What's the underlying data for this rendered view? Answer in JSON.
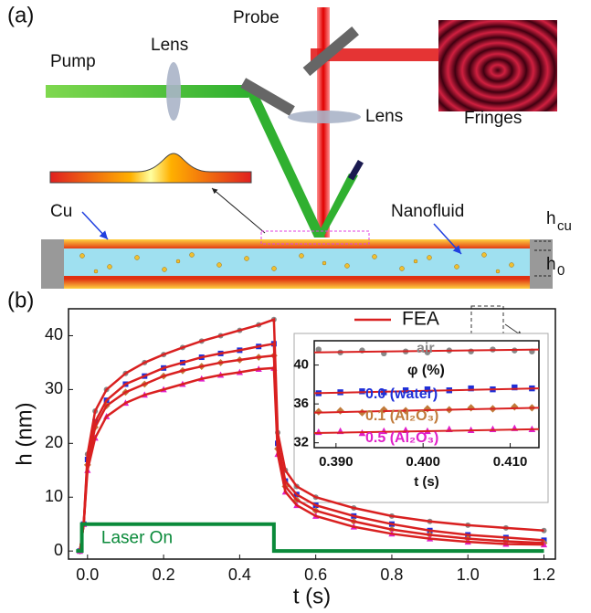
{
  "panel_a": {
    "label": "(a)",
    "pump": "Pump",
    "lens_pump": "Lens",
    "probe": "Probe",
    "lens_probe": "Lens",
    "fringes": "Fringes",
    "cu": "Cu",
    "nanofluid": "Nanofluid",
    "h_cu": {
      "text": "h",
      "sub": "cu"
    },
    "h_0": {
      "text": "h",
      "sub": "0"
    }
  },
  "chart_data": [
    {
      "type": "scatter",
      "panel_label": "(b)",
      "x_label": "t (s)",
      "y_label": "h (nm)",
      "xlim": [
        -0.05,
        1.23
      ],
      "ylim": [
        -1.5,
        45
      ],
      "xticks": [
        {
          "value": 0,
          "label": "0.0"
        },
        0.2,
        0.4,
        0.6,
        0.8,
        {
          "value": 1,
          "label": "1.0"
        },
        1.2
      ],
      "yticks": [
        0,
        10,
        20,
        30,
        40
      ],
      "fit_name": "FEA",
      "fit_color": "#d92020",
      "x": [
        -0.02,
        -0.01,
        0.0,
        0.02,
        0.05,
        0.1,
        0.15,
        0.2,
        0.25,
        0.3,
        0.35,
        0.4,
        0.45,
        0.49,
        0.5,
        0.52,
        0.55,
        0.6,
        0.7,
        0.8,
        0.9,
        1.0,
        1.1,
        1.2
      ],
      "series": [
        {
          "color": "#888888",
          "marker": "circle",
          "values": [
            0,
            5,
            18,
            26,
            30,
            33,
            35,
            36.5,
            37.8,
            39,
            40,
            41,
            42,
            43,
            22,
            15,
            12,
            10,
            8,
            6.5,
            5.5,
            4.8,
            4.3,
            3.8
          ]
        },
        {
          "color": "#1f2fd8",
          "marker": "square",
          "values": [
            0,
            5,
            17,
            24,
            28,
            31,
            32.5,
            34,
            35,
            36,
            36.7,
            37.3,
            38,
            38.5,
            20,
            13,
            10.5,
            8.5,
            6.5,
            5,
            3.8,
            3,
            2.5,
            2
          ]
        },
        {
          "color": "#c07a3a",
          "marker": "diamond",
          "values": [
            0,
            5,
            16,
            23,
            27,
            29.5,
            31,
            32.5,
            33.5,
            34.3,
            35,
            35.5,
            36,
            36.3,
            19,
            12,
            9.5,
            7.5,
            5.5,
            4,
            3,
            2.3,
            1.8,
            1.5
          ]
        },
        {
          "color": "#e020c8",
          "marker": "triangle",
          "values": [
            0,
            5,
            15,
            21,
            25,
            27.5,
            29,
            30,
            31,
            32,
            32.7,
            33.2,
            33.8,
            34,
            18,
            11,
            8.5,
            6.5,
            4.5,
            3.2,
            2.3,
            1.7,
            1.3,
            1.2
          ]
        }
      ],
      "laser": {
        "label": "Laser On",
        "color": "#0a8a3a",
        "x": [
          -0.03,
          -0.015,
          -0.015,
          0.49,
          0.49,
          1.2
        ],
        "values": [
          0,
          0,
          5,
          5,
          0,
          0
        ]
      }
    },
    {
      "type": "scatter",
      "x_label": "t (s)",
      "legend_title": "φ (%)",
      "xlim": [
        0.3875,
        0.4133
      ],
      "ylim": [
        31.5,
        42.5
      ],
      "xticks": [
        {
          "value": 0.39,
          "label": "0.390"
        },
        {
          "value": 0.4,
          "label": "0.400"
        },
        {
          "value": 0.41,
          "label": "0.410"
        }
      ],
      "yticks": [
        32,
        36,
        40
      ],
      "fit_color": "#d92020",
      "x": [
        0.388,
        0.3905,
        0.393,
        0.3955,
        0.398,
        0.4005,
        0.403,
        0.4055,
        0.408,
        0.4105,
        0.4125
      ],
      "series": [
        {
          "name": "air",
          "color": "#888888",
          "marker": "circle",
          "values": [
            41.6,
            41.3,
            41.5,
            41.2,
            41.4,
            41.3,
            41.5,
            41.4,
            41.6,
            41.5,
            41.4
          ],
          "fit": [
            41.3,
            41.6
          ]
        },
        {
          "name": "0.0 (water)",
          "color": "#1f2fd8",
          "marker": "square",
          "values": [
            37.1,
            37.2,
            37.3,
            37.2,
            37.4,
            37.5,
            37.4,
            37.6,
            37.5,
            37.7,
            37.6
          ],
          "fit": [
            37.1,
            37.6
          ]
        },
        {
          "name": "0.1 (Al₂O₃)",
          "color": "#c07a3a",
          "marker": "diamond",
          "values": [
            35.2,
            35.3,
            35.1,
            35.4,
            35.3,
            35.5,
            35.4,
            35.6,
            35.5,
            35.7,
            35.6
          ],
          "fit": [
            35.1,
            35.6
          ]
        },
        {
          "name": "0.5 (Al₂O₃)",
          "color": "#e020c8",
          "marker": "triangle",
          "values": [
            33.1,
            33.2,
            33.0,
            33.2,
            33.3,
            33.2,
            33.4,
            33.3,
            33.4,
            33.5,
            33.4
          ],
          "fit": [
            33.0,
            33.4
          ]
        }
      ]
    }
  ]
}
